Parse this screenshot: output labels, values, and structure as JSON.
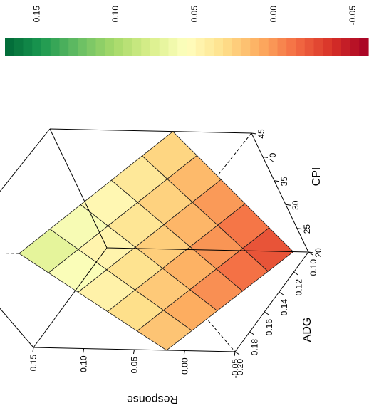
{
  "chart_data": {
    "type": "surface",
    "xlabel": "ADG",
    "ylabel": "CPI",
    "zlabel": "Response",
    "x": [
      0.1,
      0.12,
      0.14,
      0.16,
      0.18,
      0.2
    ],
    "y": [
      20,
      25,
      30,
      35,
      40,
      45
    ],
    "x_ticks": [
      "0.10",
      "0.12",
      "0.14",
      "0.16",
      "0.18",
      "0.20"
    ],
    "y_ticks": [
      "20",
      "25",
      "30",
      "35",
      "40",
      "45"
    ],
    "z_ticks": [
      "-0.05",
      "0.00",
      "0.05",
      "0.10",
      "0.15"
    ],
    "zlim": [
      -0.05,
      0.15
    ],
    "z_corners": {
      "adg_min_cpi_min": -0.035,
      "adg_max_cpi_min": 0.018,
      "adg_min_cpi_max": 0.028,
      "adg_max_cpi_max": 0.083
    },
    "colorbar": {
      "tick_labels": [
        "0.15",
        "0.10",
        "0.05",
        "0.00",
        "-0.05"
      ],
      "tick_values": [
        0.15,
        0.1,
        0.05,
        0.0,
        -0.05
      ],
      "range": [
        -0.06,
        0.17
      ],
      "palette": [
        "#006837",
        "#1a9850",
        "#66bd63",
        "#a6d96a",
        "#d9ef8b",
        "#ffffbf",
        "#fee08b",
        "#fdae61",
        "#f46d43",
        "#d73027",
        "#a50026"
      ]
    }
  }
}
